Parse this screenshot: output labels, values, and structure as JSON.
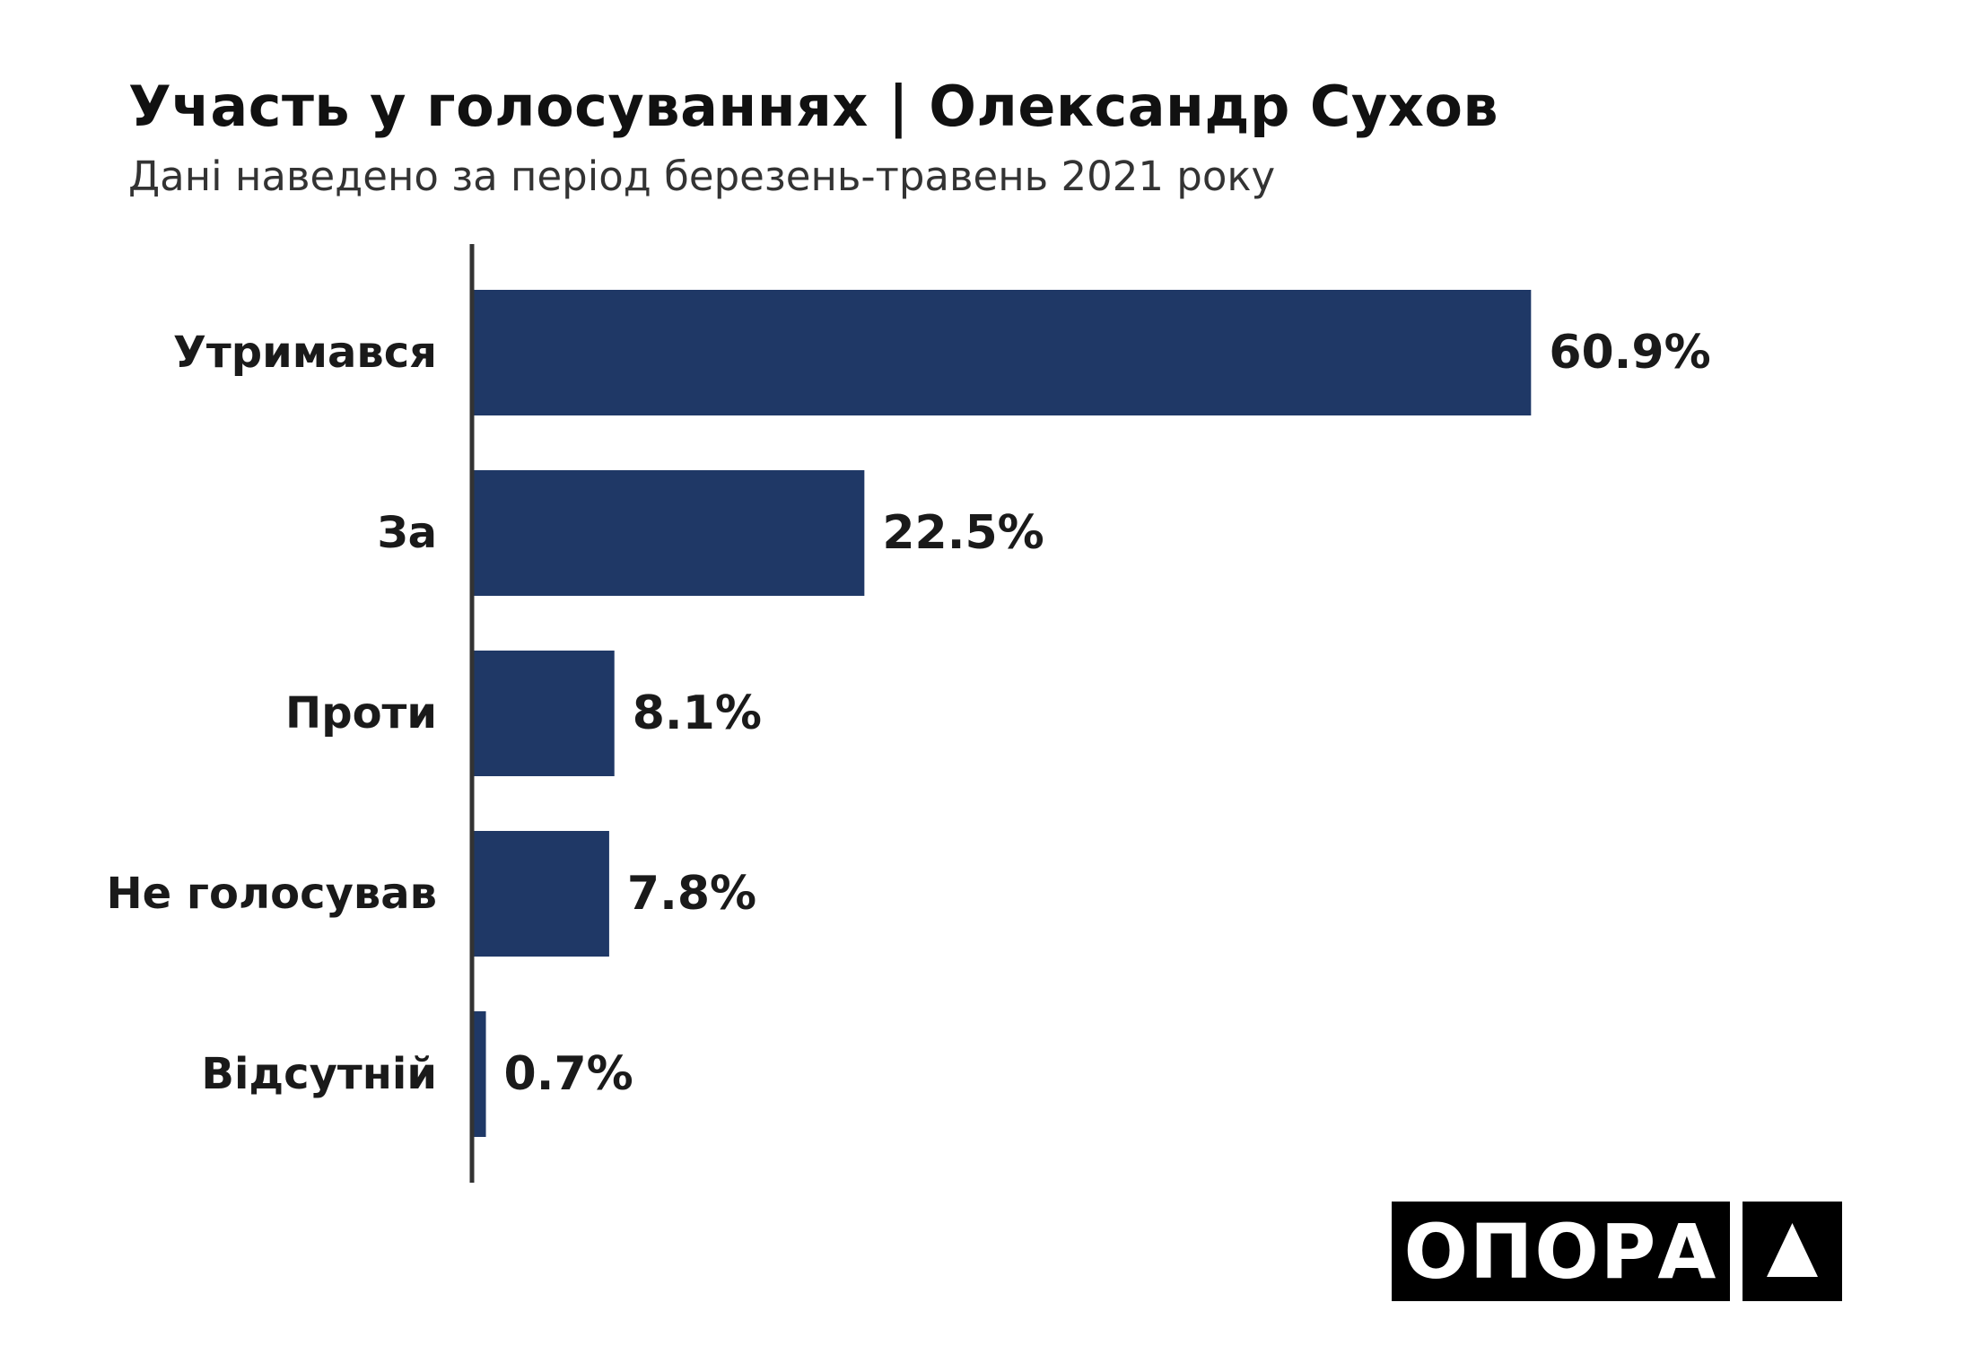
{
  "chart_data": {
    "type": "bar",
    "orientation": "horizontal",
    "title": "Участь у голосуваннях | Олександр Сухов",
    "subtitle": "Дані наведено за період березень-травень 2021 року",
    "categories": [
      "Утримався",
      "За",
      "Проти",
      "Не голосував",
      "Відсутній"
    ],
    "values": [
      60.9,
      22.5,
      8.1,
      7.8,
      0.7
    ],
    "value_labels": [
      "60.9%",
      "22.5%",
      "8.1%",
      "7.8%",
      "0.7%"
    ],
    "xlim": [
      0,
      66
    ],
    "xlabel": "",
    "ylabel": "",
    "grid": false,
    "bar_color": "#1f3866"
  },
  "logo": {
    "text": "ОПОРА",
    "icon": "triangle-logo-icon"
  }
}
